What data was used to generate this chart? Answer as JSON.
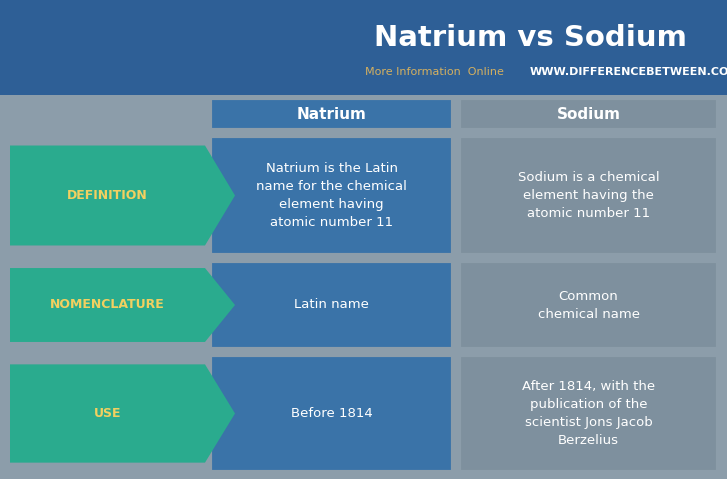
{
  "title": "Natrium vs Sodium",
  "subtitle_gray": "More Information  Online  ",
  "subtitle_url": "WWW.DIFFERENCEBETWEEN.COM",
  "col1_header": "Natrium",
  "col2_header": "Sodium",
  "rows": [
    {
      "label": "DEFINITION",
      "col1": "Natrium is the Latin\nname for the chemical\nelement having\natomic number 11",
      "col2": "Sodium is a chemical\nelement having the\natomic number 11"
    },
    {
      "label": "NOMENCLATURE",
      "col1": "Latin name",
      "col2": "Common\nchemical name"
    },
    {
      "label": "USE",
      "col1": "Before 1814",
      "col2": "After 1814, with the\npublication of the\nscientist Jons Jacob\nBerzelius"
    }
  ],
  "bg_color": "#8c9daa",
  "header_bg": "#3a73a8",
  "col1_cell_bg": "#3a73a8",
  "col2_cell_bg": "#7e909e",
  "arrow_bg": "#2aab8e",
  "title_color": "#ffffff",
  "header_text_color": "#ffffff",
  "cell_text_color": "#ffffff",
  "label_text_color": "#f2d060",
  "subtitle_gray_color": "#d4b060",
  "subtitle_url_color": "#ffffff",
  "top_bar_color": "#2e5f96"
}
